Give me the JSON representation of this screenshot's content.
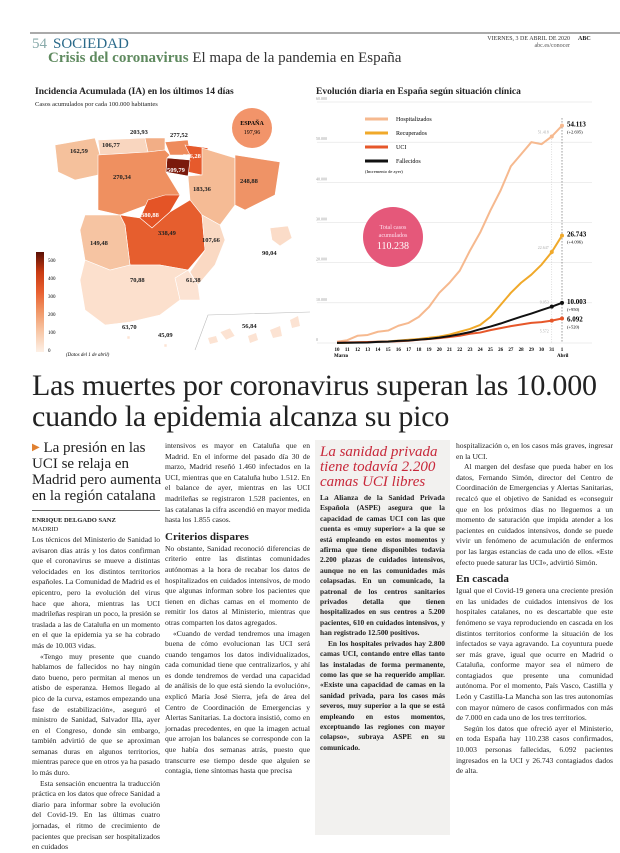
{
  "header": {
    "page_number": "54",
    "section": "SOCIEDAD",
    "kicker": "Crisis del coronavirus",
    "title": "El mapa de la pandemia en España",
    "date": "VIERNES, 3 DE ABRIL DE 2020",
    "brand": "ABC",
    "web": "abc.es/conocer"
  },
  "map": {
    "title": "Incidencia Acumulada (IA) en los últimos 14 días",
    "subtitle": "Casos acumulados por cada 100.000 habitantes",
    "national_label": "ESPAÑA",
    "national_value": "197,96",
    "note": "(Datos del 1 de abril)",
    "legend": [
      "500",
      "400",
      "300",
      "200",
      "100",
      "0"
    ],
    "regions": [
      {
        "name": "Galicia",
        "value": "162,59",
        "color": "#f5c19c"
      },
      {
        "name": "Asturias",
        "value": "106,77",
        "color": "#f9d6bf"
      },
      {
        "name": "Cantabria",
        "value": "203,93",
        "color": "#f2ae86"
      },
      {
        "name": "País Vasco",
        "value": "277,52",
        "color": "#ee8b5c"
      },
      {
        "name": "Navarra",
        "value": "336,28",
        "color": "#e65a2c"
      },
      {
        "name": "La Rioja",
        "value": "509,79",
        "color": "#7a1a0b"
      },
      {
        "name": "Castilla y León",
        "value": "270,34",
        "color": "#ef9060"
      },
      {
        "name": "Aragón",
        "value": "183,36",
        "color": "#f5bb95"
      },
      {
        "name": "Cataluña",
        "value": "248,88",
        "color": "#ef9366"
      },
      {
        "name": "Madrid",
        "value": "380,88",
        "color": "#e45426"
      },
      {
        "name": "Castilla-La Mancha",
        "value": "338,49",
        "color": "#e65e2e"
      },
      {
        "name": "Extremadura",
        "value": "149,48",
        "color": "#f6c4a2"
      },
      {
        "name": "Comunidad Valenciana",
        "value": "107,66",
        "color": "#fad9c3"
      },
      {
        "name": "Murcia",
        "value": "61,38",
        "color": "#fce3d3"
      },
      {
        "name": "Andalucía",
        "value": "70,88",
        "color": "#fce0cd"
      },
      {
        "name": "Baleares",
        "value": "90,04",
        "color": "#fbdcc8"
      },
      {
        "name": "Canarias",
        "value": "56,84",
        "color": "#fce3d3"
      },
      {
        "name": "Ceuta",
        "value": "63,70",
        "color": "#fce3d3"
      },
      {
        "name": "Melilla",
        "value": "45,09",
        "color": "#fce3d3"
      }
    ]
  },
  "chart_data": {
    "type": "line",
    "title": "Evolución diaria en España según situación clínica",
    "x": [
      "10",
      "11",
      "12",
      "13",
      "14",
      "15",
      "16",
      "17",
      "18",
      "19",
      "20",
      "21",
      "22",
      "23",
      "24",
      "25",
      "26",
      "27",
      "28",
      "29",
      "30",
      "31",
      "1"
    ],
    "x_month_labels": {
      "first": "Marzo",
      "last": "Abril"
    },
    "ylim": [
      0,
      60000
    ],
    "yticks": [
      "0",
      "10.000",
      "20.000",
      "30.000",
      "40.000",
      "50.000",
      "60.000"
    ],
    "grid": true,
    "legend": "top-left",
    "legend_note": "(Incremento de ayer)",
    "series": [
      {
        "name": "Hospitalizados",
        "color": "#f6b98f",
        "values": [
          300,
          700,
          1800,
          2000,
          2800,
          3100,
          4300,
          5000,
          6500,
          9000,
          12500,
          15000,
          18000,
          23000,
          27500,
          33000,
          38000,
          44000,
          47000,
          50000,
          49500,
          51418,
          54113
        ],
        "end_label": "54.113",
        "increment": "(+2.695)",
        "prev_label": "51.418"
      },
      {
        "name": "Recuperados",
        "color": "#f0a92a",
        "values": [
          0,
          50,
          150,
          200,
          300,
          400,
          600,
          800,
          1000,
          1300,
          1600,
          2100,
          2800,
          3500,
          4500,
          6500,
          9500,
          12500,
          15000,
          17000,
          19500,
          22647,
          26743
        ],
        "end_label": "26.743",
        "increment": "(+4.096)",
        "prev_label": "22.647"
      },
      {
        "name": "UCI",
        "color": "#e6572a",
        "values": [
          100,
          150,
          200,
          250,
          300,
          350,
          450,
          550,
          800,
          1000,
          1200,
          1500,
          1800,
          2300,
          2600,
          3200,
          3700,
          4200,
          4600,
          5000,
          5200,
          5572,
          6092
        ],
        "end_label": "6.092",
        "increment": "(+520)",
        "prev_label": "5.572"
      },
      {
        "name": "Fallecidos",
        "color": "#111111",
        "values": [
          35,
          50,
          85,
          130,
          290,
          340,
          530,
          620,
          830,
          1040,
          1330,
          1720,
          2180,
          2700,
          3430,
          4090,
          4850,
          5700,
          6540,
          7340,
          8190,
          9053,
          10003
        ],
        "end_label": "10.003",
        "increment": "(+950)",
        "prev_label": "9.053"
      }
    ],
    "total": {
      "label_line1": "Total casos",
      "label_line2": "acumulados",
      "value": "110.238",
      "color": "#e5587a"
    }
  },
  "article": {
    "headline": "Las muertes por coronavirus superan las 10.000 cuando la epidemia alcanza su pico",
    "lead": "La presión en las UCI se relaja en Madrid pero aumenta en la región catalana",
    "author": "ENRIQUE DELGADO SANZ",
    "location": "MADRID",
    "col1": [
      "Los técnicos del Ministerio de Sanidad lo avisaron días atrás y los datos confirman que el coronavirus se mueve a distintas velocidades en los distintos territorios españoles. La Comunidad de Madrid es el epicentro, pero la evolución del virus hace que ahora, mientras las UCI madrileñas respiran un poco, la presión se traslada a las de Cataluña en un momento en el que la epidemia ya se ha cobrado más de 10.003 vidas.",
      "«Tengo muy presente que cuando hablamos de fallecidos no hay ningún dato bueno, pero permitan al menos un atisbo de esperanza. Hemos llegado al pico de la curva, estamos empezando una fase de estabilización», aseguró el ministro de Sanidad, Salvador Illa, ayer en el Congreso, donde sin embargo, también advirtió de que se aproximan semanas duras en algunos territorios, mientras parece que en otros ya ha pasado lo más duro.",
      "Esta sensación encuentra la traducción práctica en los datos que ofrece Sanidad a diario para informar sobre la evolución del Covid-19. En las últimas cuatro jornadas, el ritmo de crecimiento de pacientes que precisan ser hospitalizados en cuidados"
    ],
    "col2": [
      "intensivos es mayor en Cataluña que en Madrid. En el informe del pasado día 30 de marzo, Madrid reseñó 1.460 infectados en la UCI, mientras que en Cataluña hubo 1.512. En el balance de ayer, mientras en las UCI madrileñas se registraron 1.528 pacientes, en las catalanas la cifra ascendió en mayor medida hasta los 1.855 casos."
    ],
    "subhead1": "Criterios dispares",
    "col2b": [
      "No obstante, Sanidad reconoció diferencias de criterio entre las distintas comunidades autónomas a la hora de recabar los datos de hospitalizados en cuidados intensivos, de modo que algunas informan sobre los pacientes que tienen en dichas camas en el momento de remitir los datos al Ministerio, mientras que otras comparten los datos agregados.",
      "«Cuando de verdad tendremos una imagen buena de cómo evolucionan las UCI será cuando tengamos los datos individualizados, cada comunidad tiene que centralizarlos, y ahí es donde tendremos de verdad una capacidad de análisis de lo que está siendo la evolución», explicó María José Sierra, jefa de área del Centro de Coordinación de Emergencias y Alertas Sanitarias. La doctora insistió, como en jornadas precedentes, en que la imagen actual que arrojan los balances se corresponde con la que había dos semanas atrás, puesto que transcurre ese tiempo desde que alguien se contagia, tiene síntomas hasta que precisa"
    ],
    "box_title": "La sanidad privada tiene todavía 2.200 camas UCI libres",
    "box": [
      "La Alianza de la Sanidad Privada Española (ASPE) asegura que la capacidad de camas UCI con las que cuenta es «muy superior» a la que se está empleando en estos momentos y afirma que tiene disponibles todavía 2.200 plazas de cuidados intensivos, aunque no en las comunidades más colapsadas. En un comunicado, la patronal de los centros sanitarios privados detalla que tienen hospitalizados en sus centros a 5.200 pacientes, 610 en cuidados intensivos, y han registrado 12.500 positivos.",
      "En los hospitales privados hay 2.800 camas UCI, contando entre ellas tanto las instaladas de forma permanente, como las que se ha requerido ampliar. «Existe una capacidad de camas en la sanidad privada, para los casos más severos, muy superior a la que se está empleando en estos momentos, exceptuando las regiones con mayor colapso», subraya ASPE en su comunicado."
    ],
    "col4": [
      "hospitalización o, en los casos más graves, ingresar en la UCI.",
      "Al margen del desfase que pueda haber en los datos, Fernando Simón, director del Centro de Coordinación de Emergencias y Alertas Sanitarias, recalcó que el objetivo de Sanidad es «conseguir que en los próximos días no lleguemos a un momento de saturación que impida atender a los pacientes en cuidados intensivos, donde se puede vivir un fenómeno de acumulación de enfermos por las largas estancias de cada uno de ellos. «Este efecto puede saturar las UCI», advirtió Simón."
    ],
    "subhead2": "En cascada",
    "col4b": [
      "Igual que el Covid-19 genera una creciente presión en las unidades de cuidados intensivos de los hospitales catalanes, no es descartable que este fenómeno se vaya reproduciendo en cascada en los distintos territorios conforme la situación de los infectados se vaya agravando. La coyuntura puede ser más grave, igual que ocurre en Madrid o Cataluña, conforme mayor sea el número de contagiados que presente una comunidad autónoma. Por el momento, País Vasco, Castilla y León y Castilla-La Mancha son las tres autonomías con mayor número de casos confirmados con más de 7.000 en cada uno de los tres territorios.",
      "Según los datos que ofreció ayer el Ministerio, en toda España hay 110.238 casos confirmados, 10.003 personas fallecidas, 6.092 pacientes ingresados en la UCI y 26.743 contagiados dados de alta."
    ]
  }
}
